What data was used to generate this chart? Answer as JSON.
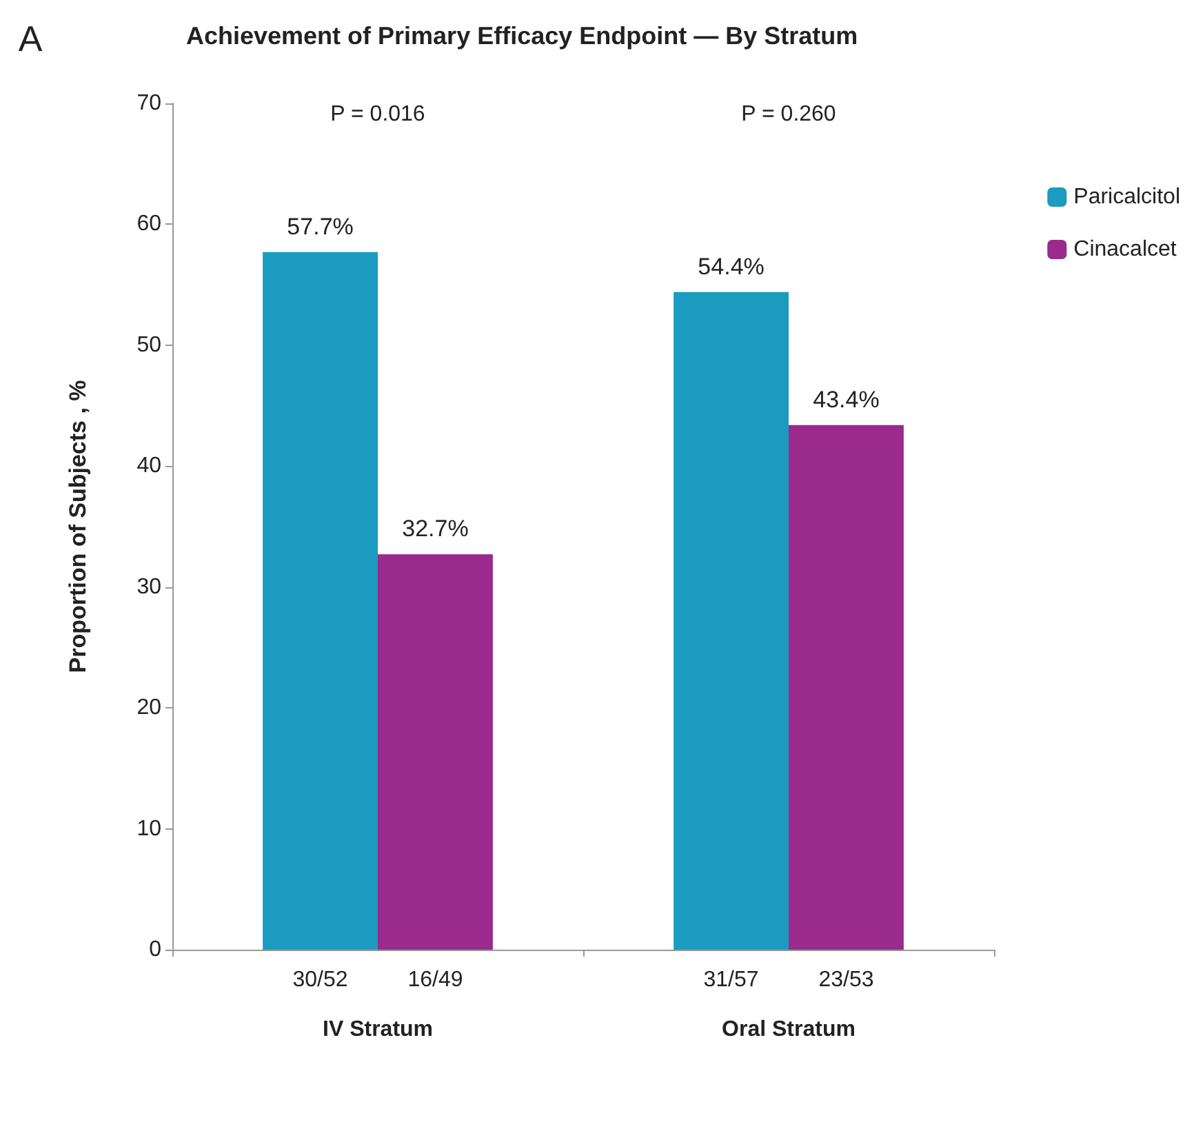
{
  "chart_data": {
    "type": "bar",
    "title": "Achievement of Primary Efficacy Endpoint — By Stratum",
    "ylabel": "Proportion of Subjects , %",
    "categories": [
      "IV Stratum",
      "Oral Stratum"
    ],
    "series": [
      {
        "name": "Paricalcitol",
        "color": "#1a9bbf",
        "values": [
          57.7,
          54.4
        ],
        "value_labels": [
          "57.7%",
          "54.4%"
        ]
      },
      {
        "name": "Cinacalcet",
        "color": "#9a2a8c",
        "values": [
          32.7,
          43.4
        ],
        "value_labels": [
          "32.7%",
          "43.4%"
        ]
      }
    ],
    "annotations": [
      "A",
      "P = 0.016",
      "P = 0.260",
      "30/52",
      "31/57",
      "16/49",
      "23/53"
    ],
    "ylim": [
      0,
      70
    ],
    "yticks": [
      0,
      10,
      20,
      30,
      40,
      50,
      60,
      70
    ],
    "grid": false,
    "legend": "right"
  }
}
